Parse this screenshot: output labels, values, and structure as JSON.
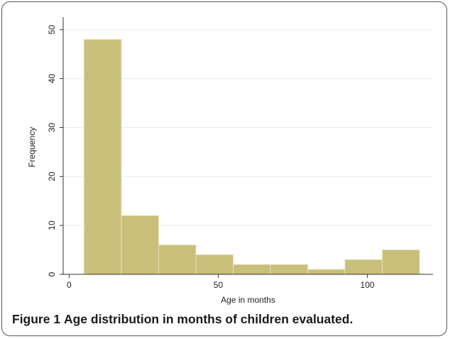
{
  "caption": {
    "label": "Figure 1",
    "text": "Age distribution in months of children evaluated."
  },
  "chart_data": {
    "type": "bar",
    "subtype": "histogram",
    "xlabel": "Age in  months",
    "ylabel": "Frequency",
    "bin_edges": [
      5,
      17.5,
      30,
      42.5,
      55,
      67.5,
      80,
      92.5,
      105,
      117.5
    ],
    "values": [
      48,
      12,
      6,
      4,
      2,
      2,
      1,
      3,
      5
    ],
    "xlim": [
      -2,
      122
    ],
    "ylim": [
      0,
      52
    ],
    "xticks": [
      0,
      50,
      100
    ],
    "yticks": [
      0,
      10,
      20,
      30,
      40,
      50
    ],
    "grid": true,
    "bar_color": "#c8bf7a",
    "bar_edge_color": "#e6e0b8"
  }
}
